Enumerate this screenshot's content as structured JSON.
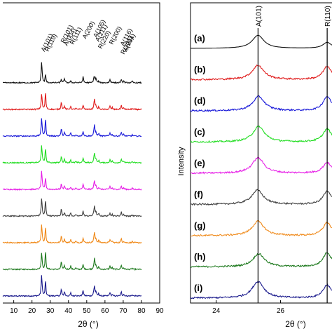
{
  "chart_data": [
    {
      "type": "line",
      "panel": "left",
      "xlabel": "2θ (°)",
      "ylabel": "",
      "xlim": [
        4,
        90
      ],
      "x_ticks": [
        "10",
        "20",
        "30",
        "40",
        "50",
        "60",
        "70",
        "80",
        "90"
      ],
      "legend": "none",
      "grid": false,
      "peak_labels": [
        {
          "label": "A(101)",
          "x": 25.3
        },
        {
          "label": "R(110)",
          "x": 27.4
        },
        {
          "label": "R(101)",
          "x": 36.1
        },
        {
          "label": "A(004)",
          "x": 37.8
        },
        {
          "label": "R(111)",
          "x": 41.2
        },
        {
          "label": "A(200)",
          "x": 48.0
        },
        {
          "label": "A(105)",
          "x": 53.9
        },
        {
          "label": "A(211)",
          "x": 55.1
        },
        {
          "label": "R(220)",
          "x": 56.6
        },
        {
          "label": "R(200)",
          "x": 62.7
        },
        {
          "label": "A(116)",
          "x": 68.8
        },
        {
          "label": "A(204)",
          "x": 70.3
        },
        {
          "label": "R(301)",
          "x": 69.0
        }
      ],
      "series": [
        {
          "color": "#1a1a8c",
          "anatase": 1.0,
          "rutile": 0.75
        },
        {
          "color": "#1f7a1f",
          "anatase": 0.8,
          "rutile": 0.9
        },
        {
          "color": "#f08a1a",
          "anatase": 0.85,
          "rutile": 0.8
        },
        {
          "color": "#404040",
          "anatase": 0.85,
          "rutile": 0.8
        },
        {
          "color": "#e61ee6",
          "anatase": 0.9,
          "rutile": 0.6
        },
        {
          "color": "#22dd22",
          "anatase": 0.85,
          "rutile": 0.75
        },
        {
          "color": "#1a1ad9",
          "anatase": 0.85,
          "rutile": 0.85
        },
        {
          "color": "#e01a1a",
          "anatase": 0.75,
          "rutile": 0.85
        },
        {
          "color": "#111111",
          "anatase": 1.0,
          "rutile": 0.4
        }
      ]
    },
    {
      "type": "line",
      "panel": "right",
      "xlabel": "2θ (°)",
      "ylabel": "Intensity",
      "xlim": [
        23.2,
        27.6
      ],
      "x_ticks": [
        "24",
        "26"
      ],
      "legend": "none",
      "grid": false,
      "reference_lines": [
        {
          "label": "A(101)",
          "x": 25.3
        },
        {
          "label": "R(110)",
          "x": 27.45
        }
      ],
      "series": [
        {
          "name": "(i)",
          "color": "#1a1a8c",
          "anatase_peak": 25.3,
          "anatase_height": 0.7,
          "rutile_height": 0.55
        },
        {
          "name": "(h)",
          "color": "#1f7a1f",
          "anatase_peak": 25.32,
          "anatase_height": 0.55,
          "rutile_height": 0.6
        },
        {
          "name": "(g)",
          "color": "#f08a1a",
          "anatase_peak": 25.3,
          "anatase_height": 0.6,
          "rutile_height": 0.55
        },
        {
          "name": "(f)",
          "color": "#404040",
          "anatase_peak": 25.28,
          "anatase_height": 0.6,
          "rutile_height": 0.55
        },
        {
          "name": "(e)",
          "color": "#e61ee6",
          "anatase_peak": 25.3,
          "anatase_height": 0.65,
          "rutile_height": 0.45
        },
        {
          "name": "(c)",
          "color": "#22dd22",
          "anatase_peak": 25.32,
          "anatase_height": 0.65,
          "rutile_height": 0.55
        },
        {
          "name": "(d)",
          "color": "#1a1ad9",
          "anatase_peak": 25.32,
          "anatase_height": 0.6,
          "rutile_height": 0.6
        },
        {
          "name": "(b)",
          "color": "#e01a1a",
          "anatase_peak": 25.3,
          "anatase_height": 0.6,
          "rutile_height": 0.55
        },
        {
          "name": "(a)",
          "color": "#111111",
          "anatase_peak": 25.3,
          "anatase_height": 0.55,
          "rutile_height": 0.25
        }
      ]
    }
  ]
}
